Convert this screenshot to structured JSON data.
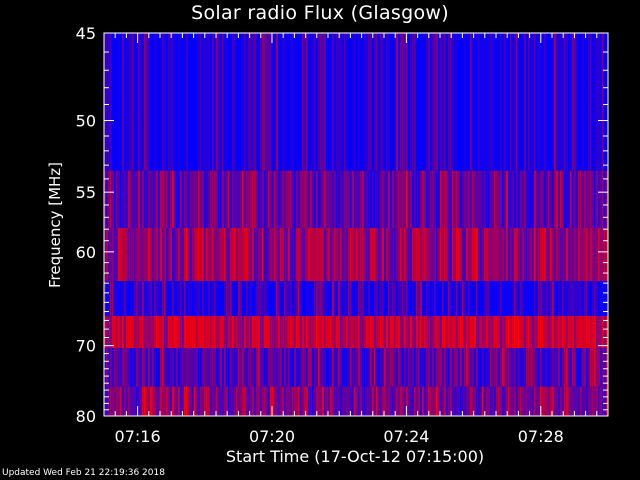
{
  "chart_data": {
    "type": "heatmap",
    "title": "Solar radio Flux (Glasgow)",
    "xlabel": "Start Time (17-Oct-12 07:15:00)",
    "ylabel": "Frequency [MHz]",
    "x_ticks": [
      "07:16",
      "07:20",
      "07:24",
      "07:28"
    ],
    "x_tick_minutes": [
      1,
      5,
      9,
      13
    ],
    "xlim_minutes": [
      0,
      15
    ],
    "y_ticks": [
      45,
      50,
      55,
      60,
      70,
      80
    ],
    "ylim": [
      45,
      80
    ],
    "y_scale": "reciprocal",
    "grid": false,
    "colors": {
      "low": "#0000ff",
      "mid": "#7f0080",
      "high": "#ff0000",
      "axis": "#ffffff",
      "background": "#000000"
    },
    "bands": [
      {
        "f_start": 45.0,
        "f_end": 53.4,
        "intensity": 0.08
      },
      {
        "f_start": 53.4,
        "f_end": 57.9,
        "intensity": 0.35
      },
      {
        "f_start": 57.9,
        "f_end": 62.8,
        "intensity": 0.55
      },
      {
        "f_start": 62.8,
        "f_end": 66.5,
        "intensity": 0.12
      },
      {
        "f_start": 66.5,
        "f_end": 70.3,
        "intensity": 0.75
      },
      {
        "f_start": 70.3,
        "f_end": 75.5,
        "intensity": 0.3
      },
      {
        "f_start": 75.5,
        "f_end": 80.0,
        "intensity": 0.45
      }
    ]
  },
  "footer": "Updated Wed Feb 21 22:19:36 2018"
}
